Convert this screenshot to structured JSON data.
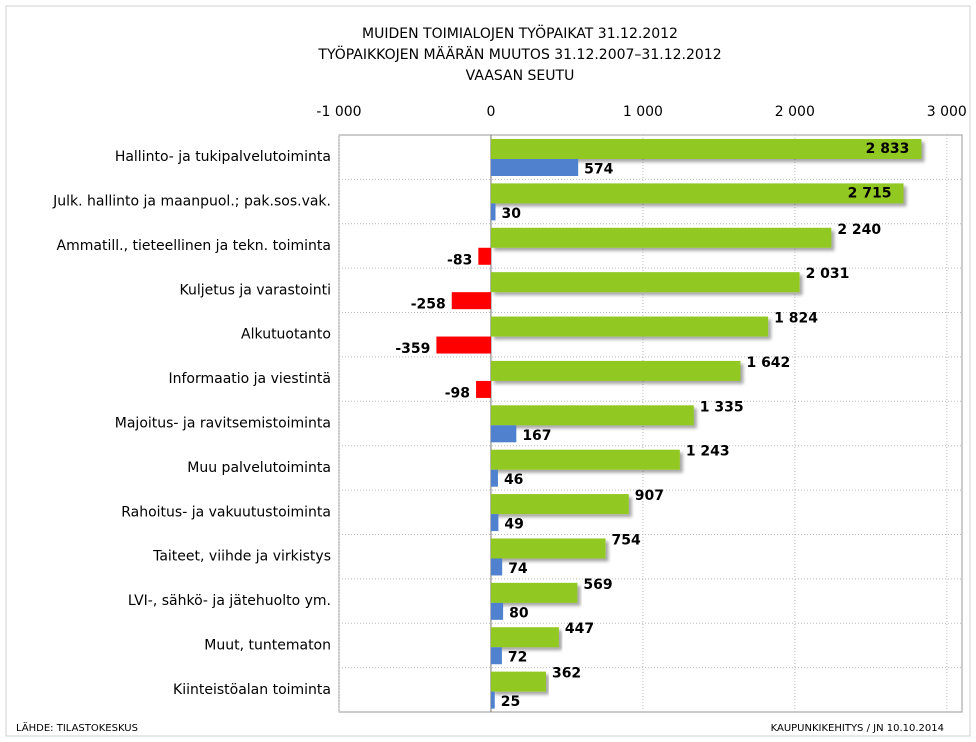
{
  "chart_data": {
    "type": "bar",
    "orientation": "horizontal",
    "title": [
      "MUIDEN TOIMIALOJEN TYÖPAIKAT 31.12.2012",
      "TYÖPAIKKOJEN MÄÄRÄN MUUTOS 31.12.2007–31.12.2012",
      "VAASAN SEUTU"
    ],
    "categories": [
      "Hallinto- ja tukipalvelutoiminta",
      "Julk. hallinto ja maanpuol.; pak.sos.vak.",
      "Ammatill., tieteellinen ja tekn. toiminta",
      "Kuljetus ja varastointi",
      "Alkutuotanto",
      "Informaatio ja viestintä",
      "Majoitus- ja ravitsemistoiminta",
      "Muu palvelutoiminta",
      "Rahoitus- ja vakuutustoiminta",
      "Taiteet, viihde ja virkistys",
      "LVI-, sähkö- ja jätehuolto ym.",
      "Muut, tuntematon",
      "Kiinteistöalan toiminta"
    ],
    "series": [
      {
        "color": "#92c821",
        "values": [
          2833,
          2715,
          2240,
          2031,
          1824,
          1642,
          1335,
          1243,
          907,
          754,
          569,
          447,
          362
        ],
        "value_labels": [
          "2 833",
          "2 715",
          "2 240",
          "2 031",
          "1 824",
          "1 642",
          "1 335",
          "1 243",
          "907",
          "754",
          "569",
          "447",
          "362"
        ]
      },
      {
        "color": "#4f81cf",
        "negative_color": "#ff0000",
        "values": [
          574,
          30,
          -83,
          -258,
          -359,
          -98,
          167,
          46,
          49,
          74,
          80,
          72,
          25
        ]
      }
    ],
    "xlim": [
      -1000,
      3100
    ],
    "xticks": [
      {
        "value": -1000,
        "label": "-1 000"
      },
      0,
      {
        "value": 1000,
        "label": "1 000"
      },
      {
        "value": 2000,
        "label": "2 000"
      },
      {
        "value": 3000,
        "label": "3 000"
      }
    ],
    "grid": true,
    "source": "LÄHDE: TILASTOKESKUS",
    "credit": "KAUPUNKIKEHITYS  / JN 10.10.2014"
  }
}
